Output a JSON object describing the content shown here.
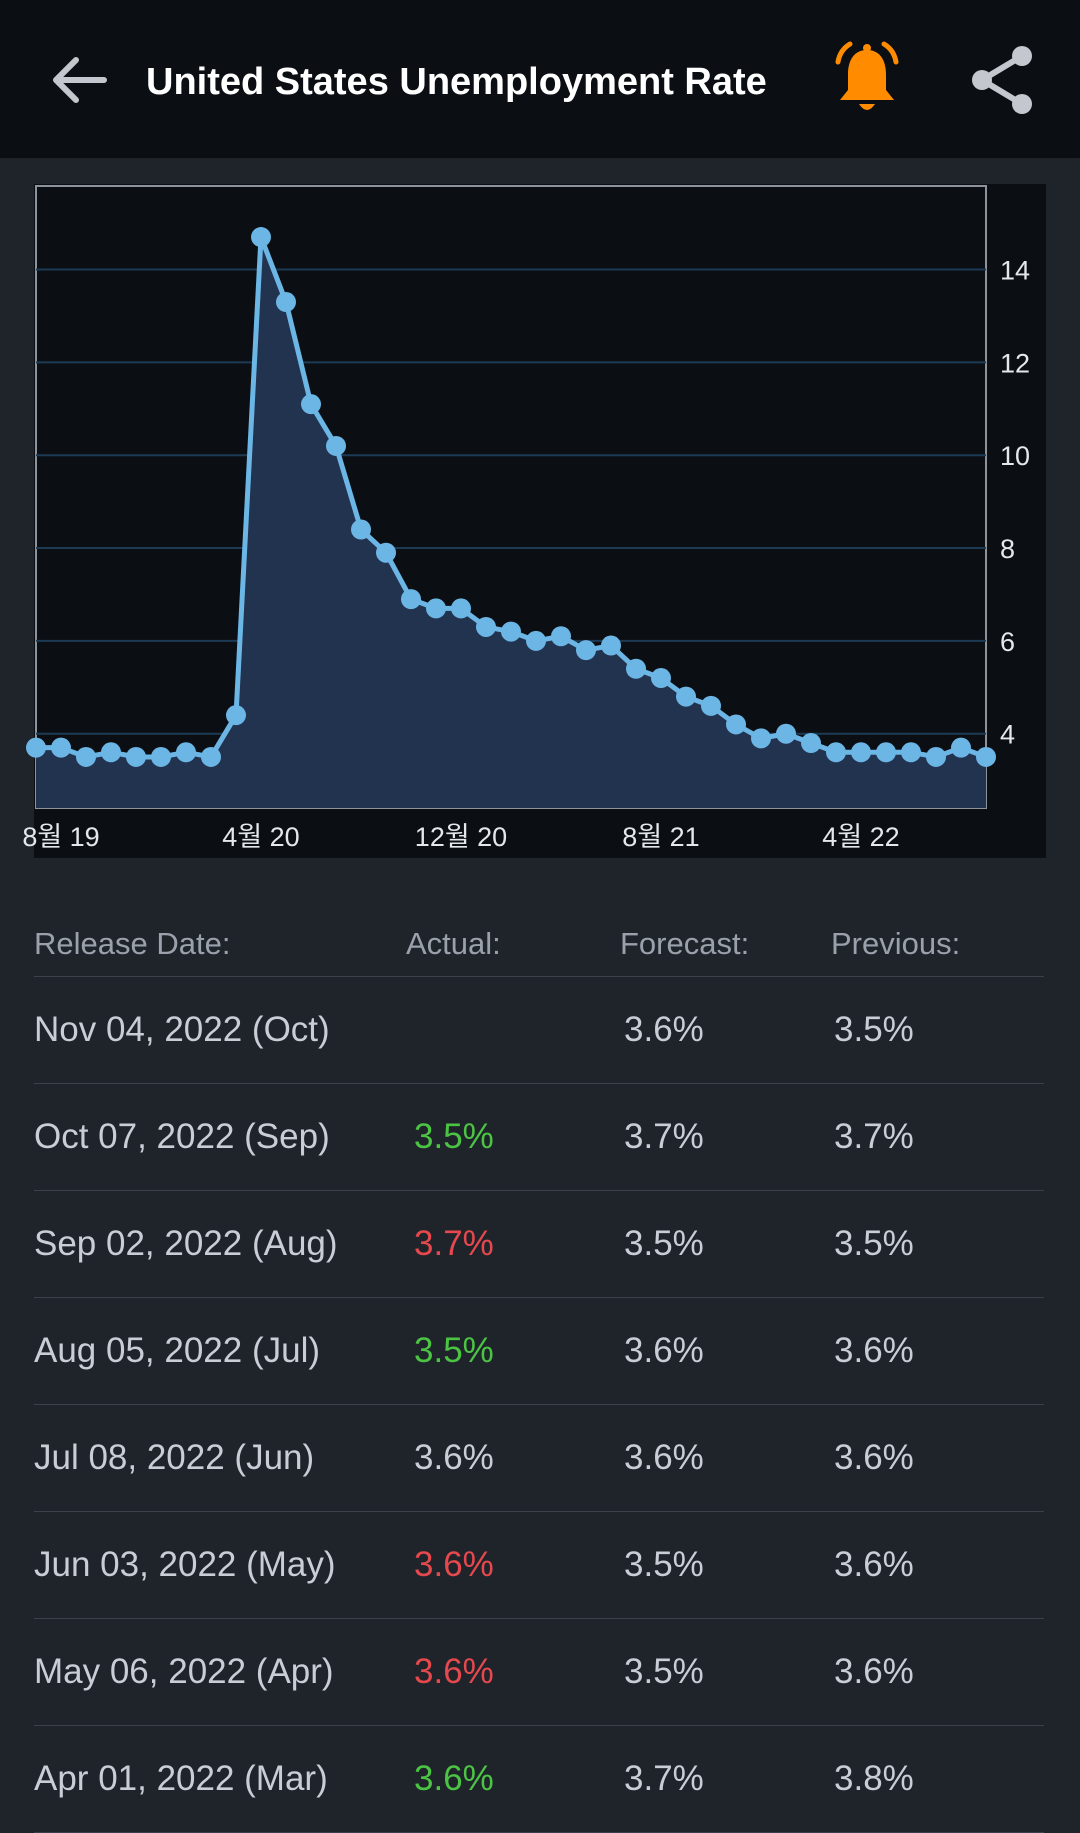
{
  "header": {
    "title": "United States Unemployment Rate",
    "icons": {
      "back": "back-arrow-icon",
      "alert": "bell-icon",
      "share": "share-icon"
    },
    "alert_color": "#ff8c00"
  },
  "chart_data": {
    "type": "area",
    "x": [
      "Jul 19",
      "Aug 19",
      "Sep 19",
      "Oct 19",
      "Nov 19",
      "Dec 19",
      "Jan 20",
      "Feb 20",
      "Mar 20",
      "Apr 20",
      "May 20",
      "Jun 20",
      "Jul 20",
      "Aug 20",
      "Sep 20",
      "Oct 20",
      "Nov 20",
      "Dec 20",
      "Jan 21",
      "Feb 21",
      "Mar 21",
      "Apr 21",
      "May 21",
      "Jun 21",
      "Jul 21",
      "Aug 21",
      "Sep 21",
      "Oct 21",
      "Nov 21",
      "Dec 21",
      "Jan 22",
      "Feb 22",
      "Mar 22",
      "Apr 22",
      "May 22",
      "Jun 22",
      "Jul 22",
      "Aug 22",
      "Sep 22"
    ],
    "values": [
      3.7,
      3.7,
      3.5,
      3.6,
      3.5,
      3.5,
      3.6,
      3.5,
      4.4,
      14.7,
      13.3,
      11.1,
      10.2,
      8.4,
      7.9,
      6.9,
      6.7,
      6.7,
      6.3,
      6.2,
      6.0,
      6.1,
      5.8,
      5.9,
      5.4,
      5.2,
      4.8,
      4.6,
      4.2,
      3.9,
      4.0,
      3.8,
      3.6,
      3.6,
      3.6,
      3.6,
      3.5,
      3.7,
      3.5
    ],
    "x_tick_labels": [
      {
        "label": "8월 19",
        "index": 1
      },
      {
        "label": "4월 20",
        "index": 9
      },
      {
        "label": "12월 20",
        "index": 17
      },
      {
        "label": "8월 21",
        "index": 25
      },
      {
        "label": "4월 22",
        "index": 33
      }
    ],
    "y_ticks": [
      4,
      6,
      8,
      10,
      12,
      14
    ],
    "ylim": [
      2.4,
      15.8
    ],
    "grid": true,
    "line_color": "#6cb6e6",
    "fill_color": "#223350"
  },
  "table": {
    "headers": [
      "Release Date:",
      "Actual:",
      "Forecast:",
      "Previous:"
    ],
    "rows": [
      {
        "date": "Nov 04, 2022 (Oct)",
        "actual": "",
        "actual_color": "#c9ced6",
        "forecast": "3.6%",
        "previous": "3.5%"
      },
      {
        "date": "Oct 07, 2022 (Sep)",
        "actual": "3.5%",
        "actual_color": "#4cc443",
        "forecast": "3.7%",
        "previous": "3.7%"
      },
      {
        "date": "Sep 02, 2022 (Aug)",
        "actual": "3.7%",
        "actual_color": "#e5484d",
        "forecast": "3.5%",
        "previous": "3.5%"
      },
      {
        "date": "Aug 05, 2022 (Jul)",
        "actual": "3.5%",
        "actual_color": "#4cc443",
        "forecast": "3.6%",
        "previous": "3.6%"
      },
      {
        "date": "Jul 08, 2022 (Jun)",
        "actual": "3.6%",
        "actual_color": "#c9ced6",
        "forecast": "3.6%",
        "previous": "3.6%"
      },
      {
        "date": "Jun 03, 2022 (May)",
        "actual": "3.6%",
        "actual_color": "#e5484d",
        "forecast": "3.5%",
        "previous": "3.6%"
      },
      {
        "date": "May 06, 2022 (Apr)",
        "actual": "3.6%",
        "actual_color": "#e5484d",
        "forecast": "3.5%",
        "previous": "3.6%"
      },
      {
        "date": "Apr 01, 2022 (Mar)",
        "actual": "3.6%",
        "actual_color": "#4cc443",
        "forecast": "3.7%",
        "previous": "3.8%"
      }
    ]
  }
}
